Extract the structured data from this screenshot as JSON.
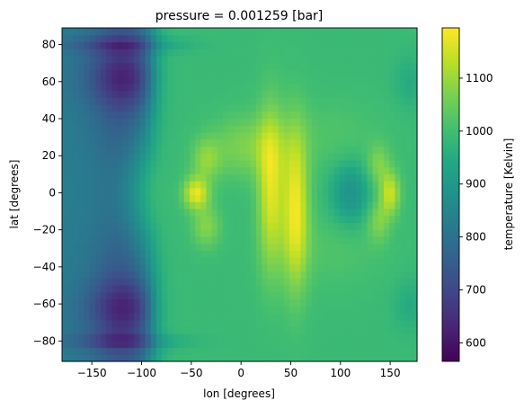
{
  "chart_data": {
    "type": "heatmap",
    "title": "pressure = 0.001259 [bar]",
    "xlabel": "lon [degrees]",
    "ylabel": "lat [degrees]",
    "xlim": [
      -180,
      177
    ],
    "ylim": [
      -91,
      89
    ],
    "x_ticks": [
      -150,
      -100,
      -50,
      0,
      50,
      100,
      150
    ],
    "y_ticks": [
      -80,
      -60,
      -40,
      -20,
      0,
      20,
      40,
      60,
      80
    ],
    "colorbar": {
      "label": "temperature [Kelvin]",
      "colormap": "viridis",
      "range": [
        565,
        1195
      ],
      "ticks": [
        600,
        700,
        800,
        900,
        1000,
        1100
      ]
    },
    "grid": false,
    "field_description_values": {
      "cold_nightside_band_lon": [
        -180,
        -90
      ],
      "coldest_regions_K": 580,
      "cold_cores_lat": [
        62,
        -62
      ],
      "polar_strip_lat": [
        80,
        -80
      ],
      "polar_strip_K": 830,
      "dayside_background_K": 990,
      "hot_equatorial_spots": [
        {
          "lon": -45,
          "lat": 0,
          "K": 1180
        },
        {
          "lon": 30,
          "lat": 0,
          "K": 1170
        },
        {
          "lon": 55,
          "lat": -10,
          "K": 1190
        },
        {
          "lon": 150,
          "lat": 0,
          "K": 1150
        }
      ],
      "cooler_equatorial_trough": {
        "lon": 110,
        "lat": 0,
        "K": 880
      }
    }
  }
}
